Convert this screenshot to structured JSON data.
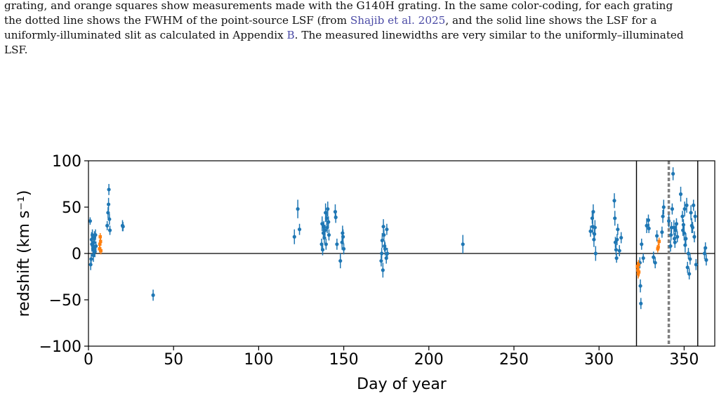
{
  "caption": {
    "line1": "grating, and orange squares show measurements made with the G140H grating.  In the same color-coding, for each grating",
    "line2_pre": "the dotted line shows the FWHM of the point-source LSF (from ",
    "line2_link": "Shajib et al. 2025",
    "line2_post": ", and the solid line shows the LSF for a",
    "line3_pre": "uniformly-illuminated slit as calculated in Appendix ",
    "line3_link": "B",
    "line3_post": ". The measured linewidths are very similar to the uniformly–illuminated",
    "line4": "LSF."
  },
  "chart_data": {
    "type": "scatter",
    "xlabel": "Day of year",
    "ylabel": "redshift (km s⁻¹)",
    "xlim": [
      0,
      368
    ],
    "ylim": [
      -100,
      100
    ],
    "xticks": [
      0,
      50,
      100,
      150,
      200,
      250,
      300,
      350
    ],
    "yticks": [
      -100,
      -50,
      0,
      50,
      100
    ],
    "xtick_labels": [
      "0",
      "50",
      "100",
      "150",
      "200",
      "250",
      "300",
      "350"
    ],
    "ytick_labels": [
      "−100",
      "−50",
      "0",
      "50",
      "100"
    ],
    "colors": {
      "blue": "#1f77b4",
      "orange": "#ff7f0e",
      "dashed": "#808080"
    },
    "hline_y": 0,
    "vlines_solid": [
      322,
      358
    ],
    "vline_dashed": 341,
    "series": [
      {
        "color": "blue",
        "points": [
          [
            1,
            35,
            4
          ],
          [
            1.3,
            -12,
            6
          ],
          [
            1.6,
            -6,
            6
          ],
          [
            1.8,
            15,
            8
          ],
          [
            2,
            10,
            8
          ],
          [
            2.3,
            20,
            6
          ],
          [
            2.6,
            5,
            8
          ],
          [
            2.9,
            -2,
            7
          ],
          [
            3.2,
            12,
            6
          ],
          [
            3.5,
            17,
            7
          ],
          [
            3.8,
            2,
            6
          ],
          [
            4.1,
            20,
            6
          ],
          [
            4.4,
            8,
            5
          ],
          [
            11,
            30,
            5
          ],
          [
            11.5,
            44,
            6
          ],
          [
            11.8,
            53,
            7
          ],
          [
            12,
            69,
            6
          ],
          [
            12.3,
            37,
            6
          ],
          [
            12.6,
            25,
            5
          ],
          [
            20,
            30,
            6
          ],
          [
            20.3,
            29,
            5
          ],
          [
            38,
            -45,
            6
          ],
          [
            121,
            18,
            8
          ],
          [
            123,
            48,
            10
          ],
          [
            124,
            26,
            6
          ],
          [
            137,
            10,
            6
          ],
          [
            137.3,
            32,
            8
          ],
          [
            137.6,
            4,
            6
          ],
          [
            138,
            22,
            7
          ],
          [
            138.3,
            29,
            6
          ],
          [
            138.6,
            17,
            6
          ],
          [
            139,
            25,
            6
          ],
          [
            139.3,
            44,
            10
          ],
          [
            139.6,
            10,
            6
          ],
          [
            140,
            38,
            8
          ],
          [
            140.3,
            28,
            6
          ],
          [
            140.6,
            48,
            8
          ],
          [
            141,
            34,
            6
          ],
          [
            141.3,
            20,
            6
          ],
          [
            145,
            45,
            8
          ],
          [
            145.3,
            39,
            6
          ],
          [
            146,
            10,
            6
          ],
          [
            148,
            -8,
            8
          ],
          [
            149,
            12,
            8
          ],
          [
            149.3,
            22,
            8
          ],
          [
            149.6,
            18,
            8
          ],
          [
            150,
            5,
            6
          ],
          [
            172,
            -8,
            6
          ],
          [
            172.3,
            0,
            6
          ],
          [
            172.6,
            14,
            8
          ],
          [
            173,
            -18,
            8
          ],
          [
            173.3,
            29,
            8
          ],
          [
            173.6,
            20,
            6
          ],
          [
            174,
            8,
            6
          ],
          [
            174.3,
            5,
            7
          ],
          [
            175,
            -5,
            6
          ],
          [
            175.3,
            26,
            6
          ],
          [
            175.6,
            0,
            6
          ],
          [
            220,
            10,
            10
          ],
          [
            295,
            24,
            6
          ],
          [
            296,
            38,
            6
          ],
          [
            296.3,
            29,
            8
          ],
          [
            296.6,
            45,
            8
          ],
          [
            297,
            15,
            8
          ],
          [
            297.3,
            21,
            6
          ],
          [
            297.6,
            28,
            8
          ],
          [
            298,
            0,
            8
          ],
          [
            309,
            57,
            8
          ],
          [
            309.3,
            38,
            8
          ],
          [
            309.6,
            12,
            6
          ],
          [
            310,
            4,
            6
          ],
          [
            310.3,
            -5,
            5
          ],
          [
            310.6,
            15,
            6
          ],
          [
            311,
            26,
            6
          ],
          [
            312,
            3,
            6
          ],
          [
            313,
            17,
            6
          ],
          [
            324,
            -10,
            6
          ],
          [
            324.3,
            -35,
            7
          ],
          [
            324.6,
            -54,
            6
          ],
          [
            325,
            10,
            6
          ],
          [
            326,
            -5,
            5
          ],
          [
            328,
            30,
            8
          ],
          [
            329,
            36,
            6
          ],
          [
            329.3,
            27,
            5
          ],
          [
            332,
            -4,
            6
          ],
          [
            333,
            -10,
            6
          ],
          [
            334,
            19,
            6
          ],
          [
            337,
            23,
            6
          ],
          [
            337.5,
            40,
            7
          ],
          [
            338,
            50,
            8
          ],
          [
            341,
            35,
            7
          ],
          [
            342,
            8,
            6
          ],
          [
            342.3,
            20,
            6
          ],
          [
            342.6,
            28,
            6
          ],
          [
            343,
            48,
            6
          ],
          [
            343.5,
            86,
            7
          ],
          [
            344,
            28,
            8
          ],
          [
            344.3,
            16,
            6
          ],
          [
            344.6,
            12,
            6
          ],
          [
            345,
            25,
            6
          ],
          [
            345.5,
            32,
            6
          ],
          [
            346,
            18,
            6
          ],
          [
            348,
            64,
            8
          ],
          [
            349,
            40,
            6
          ],
          [
            349.3,
            25,
            6
          ],
          [
            349.6,
            31,
            6
          ],
          [
            350,
            22,
            8
          ],
          [
            350.3,
            48,
            8
          ],
          [
            350.6,
            9,
            8
          ],
          [
            351,
            16,
            6
          ],
          [
            351.5,
            52,
            8
          ],
          [
            352,
            -15,
            6
          ],
          [
            352.5,
            0,
            6
          ],
          [
            353,
            -22,
            6
          ],
          [
            353.5,
            -6,
            6
          ],
          [
            354,
            44,
            8
          ],
          [
            354.5,
            30,
            8
          ],
          [
            355,
            28,
            6
          ],
          [
            355.5,
            52,
            6
          ],
          [
            356,
            18,
            6
          ],
          [
            356.5,
            40,
            6
          ],
          [
            357,
            -12,
            6
          ],
          [
            362,
            0,
            6
          ],
          [
            362.5,
            6,
            6
          ],
          [
            363,
            -7,
            6
          ]
        ]
      },
      {
        "color": "orange",
        "points": [
          [
            6.5,
            5,
            4
          ],
          [
            6.7,
            10,
            4
          ],
          [
            6.9,
            18,
            4
          ],
          [
            7.1,
            13,
            4
          ],
          [
            7.3,
            3,
            4
          ],
          [
            322.5,
            -14,
            5
          ],
          [
            322.8,
            -18,
            5
          ],
          [
            323,
            -22,
            5
          ],
          [
            323.2,
            -12,
            5
          ],
          [
            323.4,
            -20,
            5
          ],
          [
            334.5,
            5,
            4
          ],
          [
            334.8,
            7,
            4
          ],
          [
            335.3,
            13,
            4
          ]
        ]
      }
    ]
  }
}
